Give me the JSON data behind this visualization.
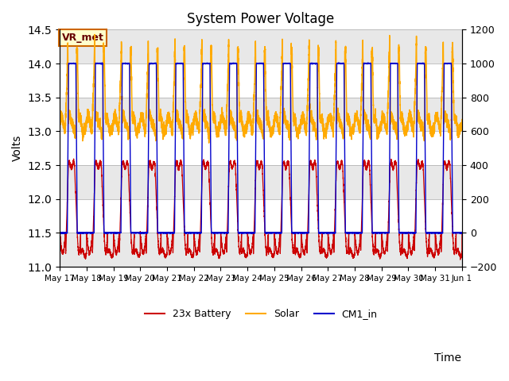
{
  "title": "System Power Voltage",
  "xlabel": "Time",
  "ylabel_left": "Volts",
  "ylim_left": [
    11.0,
    14.5
  ],
  "ylim_right": [
    -200,
    1200
  ],
  "yticks_left": [
    11.0,
    11.5,
    12.0,
    12.5,
    13.0,
    13.5,
    14.0,
    14.5
  ],
  "yticks_right": [
    -200,
    0,
    200,
    400,
    600,
    800,
    1000,
    1200
  ],
  "color_battery": "#cc0000",
  "color_solar": "#ffaa00",
  "color_cm1": "#0000cc",
  "bg_colors": [
    "#e8e8e8",
    "#ffffff",
    "#e8e8e8",
    "#ffffff",
    "#e8e8e8",
    "#ffffff",
    "#e8e8e8",
    "#ffffff"
  ],
  "annotation_text": "VR_met",
  "xtick_labels": [
    "May 17",
    "May 18",
    "May 19",
    "May 20",
    "May 21",
    "May 22",
    "May 23",
    "May 24",
    "May 25",
    "May 26",
    "May 27",
    "May 28",
    "May 29",
    "May 30",
    "May 31",
    "Jun 1"
  ],
  "n_days": 15,
  "pts_per_day": 500
}
